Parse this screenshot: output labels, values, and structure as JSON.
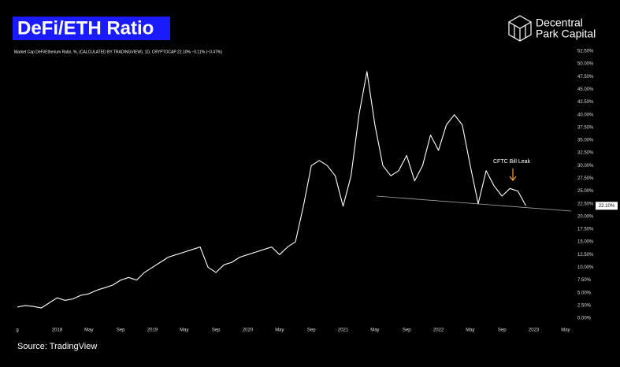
{
  "chart_data": {
    "type": "line",
    "title": "DeFi/ETH Ratio",
    "subtitle": "Market Cap DeFi/Etherium Ratio, %, (CALCULATED BY TRADINGVIEW), 1D, CRYPTOCAP  22.10%  −0.11% (−0.47%)",
    "brand": [
      "Decentral",
      "Park Capital"
    ],
    "source": "Source: TradingView",
    "annotation": "CFTC Bill Leak",
    "current_label": "22.10%",
    "x": [
      "2017-08",
      "2017-09",
      "2017-10",
      "2017-11",
      "2017-12",
      "2018-01",
      "2018-02",
      "2018-03",
      "2018-04",
      "2018-05",
      "2018-06",
      "2018-07",
      "2018-08",
      "2018-09",
      "2018-10",
      "2018-11",
      "2018-12",
      "2019-01",
      "2019-02",
      "2019-03",
      "2019-04",
      "2019-05",
      "2019-06",
      "2019-07",
      "2019-08",
      "2019-09",
      "2019-10",
      "2019-11",
      "2019-12",
      "2020-01",
      "2020-02",
      "2020-03",
      "2020-04",
      "2020-05",
      "2020-06",
      "2020-07",
      "2020-08",
      "2020-09",
      "2020-10",
      "2020-11",
      "2020-12",
      "2021-01",
      "2021-02",
      "2021-03",
      "2021-04",
      "2021-05",
      "2021-06",
      "2021-07",
      "2021-08",
      "2021-09",
      "2021-10",
      "2021-11",
      "2021-12",
      "2022-01",
      "2022-02",
      "2022-03",
      "2022-04",
      "2022-05",
      "2022-06",
      "2022-07",
      "2022-08",
      "2022-09",
      "2022-10",
      "2022-11",
      "2022-12"
    ],
    "series": [
      {
        "name": "DeFi/ETH Ratio",
        "color": "#ffffff",
        "values": [
          2.2,
          2.5,
          2.3,
          2.0,
          3.0,
          4.0,
          3.5,
          3.8,
          4.5,
          4.8,
          5.5,
          6.0,
          6.5,
          7.5,
          8.0,
          7.5,
          9.0,
          10.0,
          11.0,
          12.0,
          12.5,
          13.0,
          13.5,
          14.0,
          10.0,
          9.0,
          10.5,
          11.0,
          12.0,
          12.5,
          13.0,
          13.5,
          14.0,
          12.5,
          14.0,
          15.0,
          22.0,
          30.0,
          31.0,
          30.0,
          28.0,
          22.0,
          28.0,
          40.0,
          48.5,
          38.0,
          30.0,
          28.0,
          29.0,
          32.0,
          27.0,
          30.0,
          36.0,
          33.0,
          38.0,
          40.0,
          38.0,
          30.0,
          22.5,
          29.0,
          26.0,
          24.0,
          25.5,
          25.0,
          22.1
        ]
      }
    ],
    "xlim": [
      "2017-07",
      "2023-06"
    ],
    "xticks": [
      {
        "value": "2017-08",
        "label": "g"
      },
      {
        "value": "2018-01",
        "label": "2018"
      },
      {
        "value": "2018-05",
        "label": "May"
      },
      {
        "value": "2018-09",
        "label": "Sep"
      },
      {
        "value": "2019-01",
        "label": "2019"
      },
      {
        "value": "2019-05",
        "label": "May"
      },
      {
        "value": "2019-09",
        "label": "Sep"
      },
      {
        "value": "2020-01",
        "label": "2020"
      },
      {
        "value": "2020-05",
        "label": "May"
      },
      {
        "value": "2020-09",
        "label": "Sep"
      },
      {
        "value": "2021-01",
        "label": "2021"
      },
      {
        "value": "2021-05",
        "label": "May"
      },
      {
        "value": "2021-09",
        "label": "Sep"
      },
      {
        "value": "2022-01",
        "label": "2022"
      },
      {
        "value": "2022-05",
        "label": "May"
      },
      {
        "value": "2022-09",
        "label": "Sep"
      },
      {
        "value": "2023-01",
        "label": "2023"
      },
      {
        "value": "2023-05",
        "label": "May"
      }
    ],
    "ylim": [
      0,
      52.5
    ],
    "yticks": [
      {
        "value": 0,
        "label": "0.00%"
      },
      {
        "value": 2.5,
        "label": "2.50%"
      },
      {
        "value": 5,
        "label": "5.00%"
      },
      {
        "value": 7.5,
        "label": "7.50%"
      },
      {
        "value": 10,
        "label": "10.00%"
      },
      {
        "value": 12.5,
        "label": "12.50%"
      },
      {
        "value": 15,
        "label": "15.00%"
      },
      {
        "value": 17.5,
        "label": "17.50%"
      },
      {
        "value": 20,
        "label": "20.00%"
      },
      {
        "value": 22.5,
        "label": "22.50%"
      },
      {
        "value": 25,
        "label": "25.00%"
      },
      {
        "value": 27.5,
        "label": "27.50%"
      },
      {
        "value": 30,
        "label": "30.00%"
      },
      {
        "value": 32.5,
        "label": "32.50%"
      },
      {
        "value": 35,
        "label": "35.00%"
      },
      {
        "value": 37.5,
        "label": "37.50%"
      },
      {
        "value": 40,
        "label": "40.00%"
      },
      {
        "value": 42.5,
        "label": "42.50%"
      },
      {
        "value": 45,
        "label": "45.00%"
      },
      {
        "value": 47.5,
        "label": "47.50%"
      },
      {
        "value": 50,
        "label": "50.00%"
      },
      {
        "value": 52.5,
        "label": "52.50%"
      }
    ],
    "grid": false
  }
}
